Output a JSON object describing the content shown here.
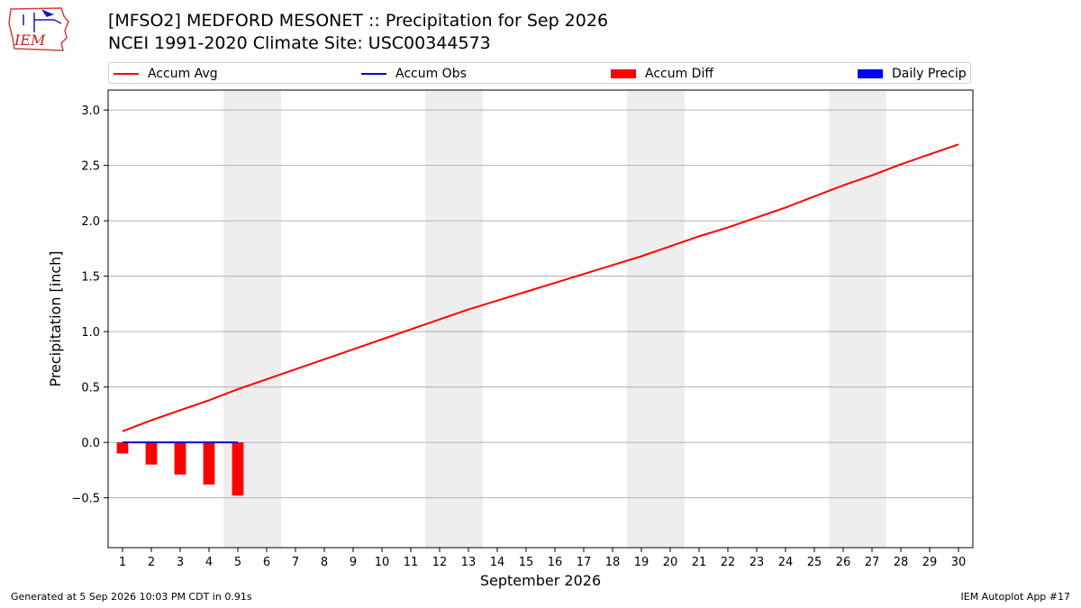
{
  "header": {
    "logo_text": "IEM",
    "title_line1": "[MFSO2] MEDFORD MESONET :: Precipitation for Sep 2026",
    "title_line2": "NCEI 1991-2020 Climate Site: USC00344573"
  },
  "footer": {
    "left": "Generated at 5 Sep 2026 10:03 PM CDT in 0.91s",
    "right": "IEM Autoplot App #17"
  },
  "colors": {
    "accum_avg": "#ff0000",
    "accum_obs": "#0000cc",
    "accum_diff": "#ff0000",
    "daily_precip": "#0000ff",
    "weekend_band": "#eeeeee",
    "grid": "#b0b0b0"
  },
  "chart_data": {
    "type": "line",
    "xlabel": "September 2026",
    "ylabel": "Precipitation [inch]",
    "xlim": [
      0.5,
      30.5
    ],
    "ylim": [
      -0.95,
      3.18
    ],
    "yticks": [
      -0.5,
      0.0,
      0.5,
      1.0,
      1.5,
      2.0,
      2.5,
      3.0
    ],
    "ytick_labels": [
      "−0.5",
      "0.0",
      "0.5",
      "1.0",
      "1.5",
      "2.0",
      "2.5",
      "3.0"
    ],
    "x": [
      1,
      2,
      3,
      4,
      5,
      6,
      7,
      8,
      9,
      10,
      11,
      12,
      13,
      14,
      15,
      16,
      17,
      18,
      19,
      20,
      21,
      22,
      23,
      24,
      25,
      26,
      27,
      28,
      29,
      30
    ],
    "xtick_labels": [
      "1",
      "2",
      "3",
      "4",
      "5",
      "6",
      "7",
      "8",
      "9",
      "10",
      "11",
      "12",
      "13",
      "14",
      "15",
      "16",
      "17",
      "18",
      "19",
      "20",
      "21",
      "22",
      "23",
      "24",
      "25",
      "26",
      "27",
      "28",
      "29",
      "30"
    ],
    "grid": "horizontal",
    "legend": "top",
    "weekend_spans": [
      [
        5,
        6
      ],
      [
        12,
        13
      ],
      [
        19,
        20
      ],
      [
        26,
        27
      ]
    ],
    "legend_entries": [
      {
        "label": "Accum Avg",
        "kind": "line",
        "color": "#ff0000"
      },
      {
        "label": "Accum Obs",
        "kind": "line",
        "color": "#0000cc"
      },
      {
        "label": "Accum Diff",
        "kind": "box",
        "color": "#ff0000"
      },
      {
        "label": "Daily Precip",
        "kind": "box",
        "color": "#0000ff"
      }
    ],
    "series": [
      {
        "name": "Accum Avg",
        "type": "line",
        "x": [
          1,
          2,
          3,
          4,
          5,
          6,
          7,
          8,
          9,
          10,
          11,
          12,
          13,
          14,
          15,
          16,
          17,
          18,
          19,
          20,
          21,
          22,
          23,
          24,
          25,
          26,
          27,
          28,
          29,
          30
        ],
        "values": [
          0.1,
          0.2,
          0.29,
          0.38,
          0.48,
          0.57,
          0.66,
          0.75,
          0.84,
          0.93,
          1.02,
          1.11,
          1.2,
          1.28,
          1.36,
          1.44,
          1.52,
          1.6,
          1.68,
          1.77,
          1.86,
          1.94,
          2.03,
          2.12,
          2.22,
          2.32,
          2.41,
          2.51,
          2.6,
          2.69
        ]
      },
      {
        "name": "Accum Obs",
        "type": "line",
        "x": [
          1,
          2,
          3,
          4,
          5
        ],
        "values": [
          0.0,
          0.0,
          0.0,
          0.0,
          0.0
        ]
      },
      {
        "name": "Accum Diff",
        "type": "bar",
        "x": [
          1,
          2,
          3,
          4,
          5
        ],
        "values": [
          -0.1,
          -0.2,
          -0.29,
          -0.38,
          -0.48
        ]
      },
      {
        "name": "Daily Precip",
        "type": "bar",
        "x": [
          1,
          2,
          3,
          4,
          5
        ],
        "values": [
          0.0,
          0.0,
          0.0,
          0.0,
          0.0
        ]
      }
    ]
  }
}
